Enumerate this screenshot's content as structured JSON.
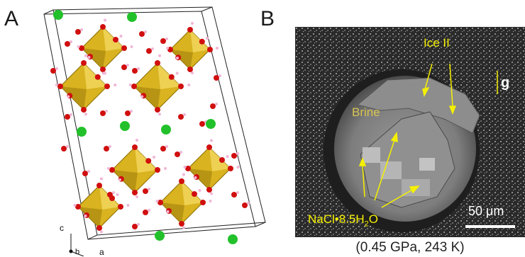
{
  "panels": {
    "a": {
      "letter": "A",
      "axes": {
        "c": "c",
        "b": "b",
        "a": "a"
      }
    },
    "b": {
      "letter": "B",
      "labels": {
        "ice": "Ice II",
        "brine": "Brine",
        "gravity": "g",
        "hydrate_main": "NaCl•8.5H",
        "hydrate_sub": "2",
        "hydrate_end": "O",
        "scale": "50 μm"
      },
      "caption": "(0.45 GPa, 243 K)"
    }
  },
  "colors": {
    "octahedron": "#d9b320",
    "oxygen": "#d10f0f",
    "chloride": "#22c12b",
    "hydrogen": "#f0b6d6",
    "annotation": "#f5f000",
    "brine_label": "#d8c550"
  }
}
